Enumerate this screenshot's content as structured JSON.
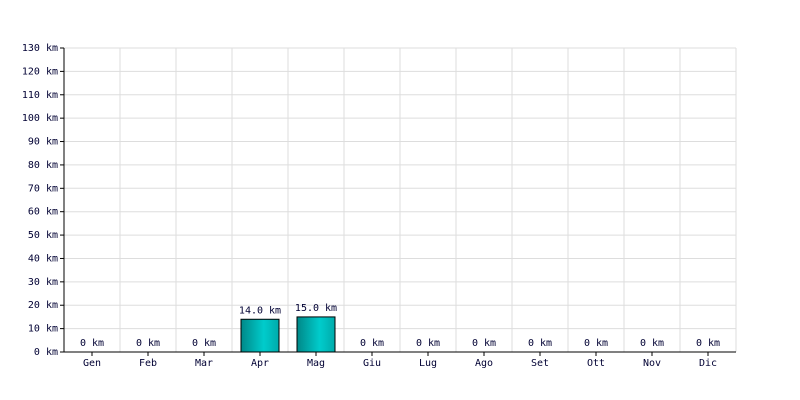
{
  "chart_data": {
    "type": "bar",
    "categories": [
      "Gen",
      "Feb",
      "Mar",
      "Apr",
      "Mag",
      "Giu",
      "Lug",
      "Ago",
      "Set",
      "Ott",
      "Nov",
      "Dic"
    ],
    "values": [
      0,
      0,
      0,
      14.0,
      15.0,
      0,
      0,
      0,
      0,
      0,
      0,
      0
    ],
    "value_labels": [
      "0 km",
      "0 km",
      "0 km",
      "14.0 km",
      "15.0 km",
      "0 km",
      "0 km",
      "0 km",
      "0 km",
      "0 km",
      "0 km",
      "0 km"
    ],
    "color": "#00cccc",
    "ylim": [
      0,
      130
    ],
    "yticks": [
      {
        "value": 0,
        "label": "0 km"
      },
      {
        "value": 10,
        "label": "10 km"
      },
      {
        "value": 20,
        "label": "20 km"
      },
      {
        "value": 30,
        "label": "30 km"
      },
      {
        "value": 40,
        "label": "40 km"
      },
      {
        "value": 50,
        "label": "50 km"
      },
      {
        "value": 60,
        "label": "60 km"
      },
      {
        "value": 70,
        "label": "70 km"
      },
      {
        "value": 80,
        "label": "80 km"
      },
      {
        "value": 90,
        "label": "90 km"
      },
      {
        "value": 100,
        "label": "100 km"
      },
      {
        "value": 110,
        "label": "110 km"
      },
      {
        "value": 120,
        "label": "120 km"
      },
      {
        "value": 130,
        "label": "130 km"
      }
    ],
    "grid": true
  }
}
